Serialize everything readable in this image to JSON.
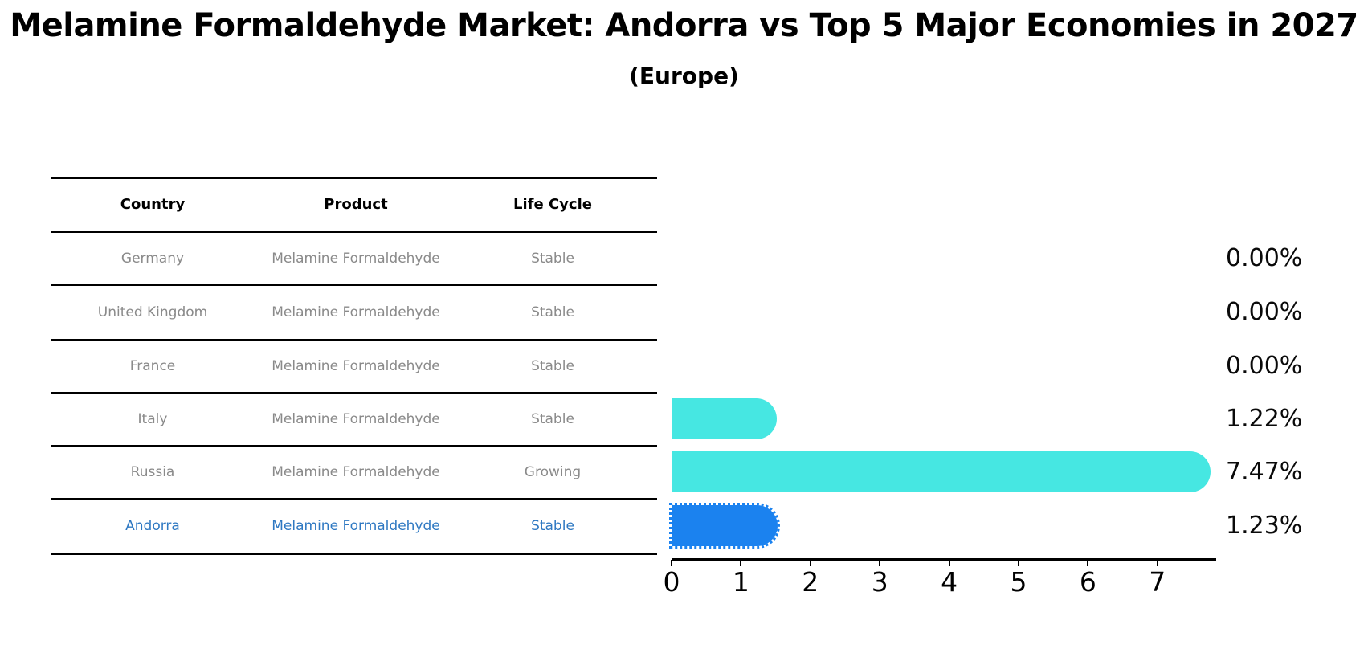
{
  "title": "Melamine Formaldehyde Market: Andorra vs Top 5 Major Economies in 2027",
  "subtitle": "(Europe)",
  "table": {
    "headers": {
      "country": "Country",
      "product": "Product",
      "life_cycle": "Life Cycle"
    },
    "rows": [
      {
        "country": "Germany",
        "product": "Melamine Formaldehyde",
        "life_cycle": "Stable",
        "value_label": "0.00%"
      },
      {
        "country": "United Kingdom",
        "product": "Melamine Formaldehyde",
        "life_cycle": "Stable",
        "value_label": "0.00%"
      },
      {
        "country": "France",
        "product": "Melamine Formaldehyde",
        "life_cycle": "Stable",
        "value_label": "0.00%"
      },
      {
        "country": "Italy",
        "product": "Melamine Formaldehyde",
        "life_cycle": "Stable",
        "value_label": "1.22%"
      },
      {
        "country": "Russia",
        "product": "Melamine Formaldehyde",
        "life_cycle": "Growing",
        "value_label": "7.47%"
      },
      {
        "country": "Andorra",
        "product": "Melamine Formaldehyde",
        "life_cycle": "Stable",
        "value_label": "1.23%"
      }
    ]
  },
  "chart_data": {
    "type": "bar",
    "orientation": "horizontal",
    "title": "Melamine Formaldehyde Market: Andorra vs Top 5 Major Economies in 2027 (Europe)",
    "categories": [
      "Germany",
      "United Kingdom",
      "France",
      "Italy",
      "Russia",
      "Andorra"
    ],
    "values": [
      0.0,
      0.0,
      0.0,
      1.22,
      7.47,
      1.23
    ],
    "value_labels": [
      "0.00%",
      "0.00%",
      "0.00%",
      "1.22%",
      "7.47%",
      "1.23%"
    ],
    "x_ticks": [
      0,
      1,
      2,
      3,
      4,
      5,
      6,
      7
    ],
    "xlim": [
      0,
      7.85
    ],
    "xlabel": "",
    "ylabel": "",
    "grid": false,
    "legend": false,
    "highlight_index": 5,
    "bar_color": "#46e7e2",
    "highlight_color": "#1b82ef"
  },
  "colors": {
    "bar": "#46e7e2",
    "highlight_bar": "#1b82ef",
    "row_text": "#8a8a8a",
    "highlight_text": "#2e78c2",
    "axis": "#000000"
  }
}
